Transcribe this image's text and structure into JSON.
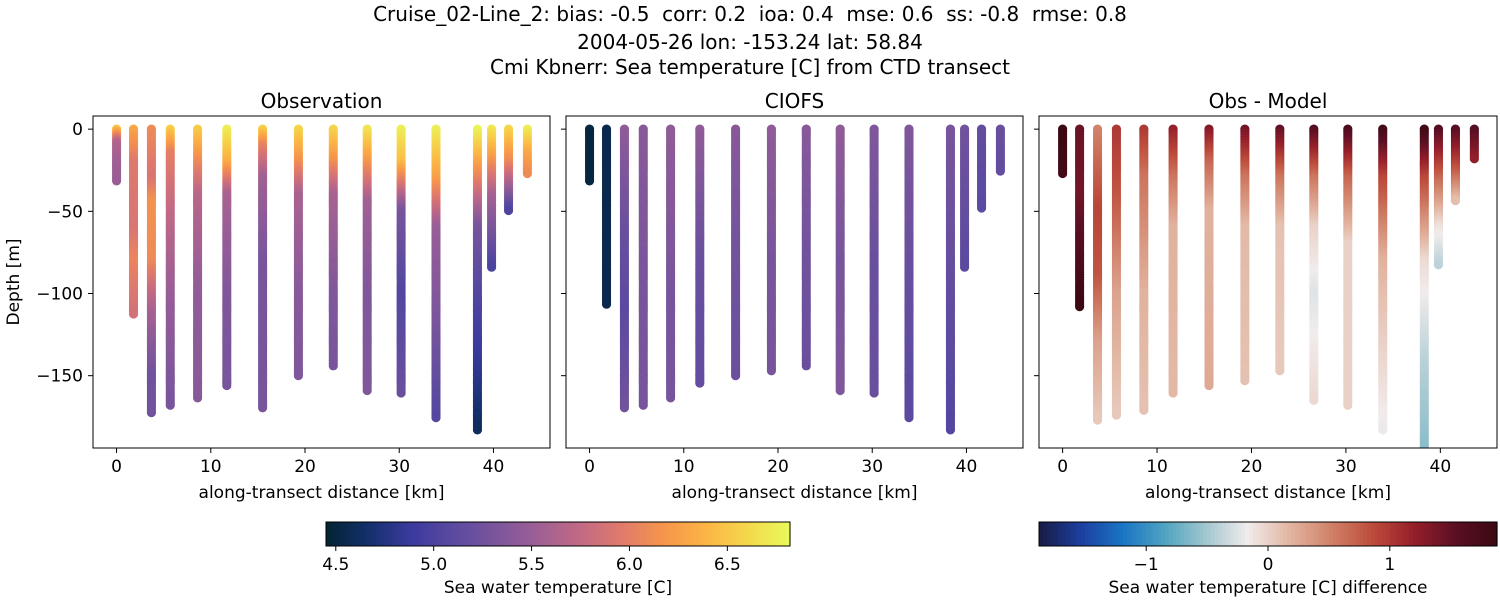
{
  "figure": {
    "title_lines": [
      "Cruise_02-Line_2: bias: -0.5  corr: 0.2  ioa: 0.4  mse: 0.6  ss: -0.8  rmse: 0.8",
      "2004-05-26 lon: -153.24 lat: 58.84",
      "Cmi Kbnerr: Sea temperature [C] from CTD transect"
    ]
  },
  "chart_data": [
    {
      "type": "scatter",
      "panel": "observation",
      "title": "Observation",
      "xlabel": "along-transect distance [km]",
      "ylabel": "Depth [m]",
      "xlim": [
        -2.5,
        46
      ],
      "ylim": [
        -194,
        8
      ],
      "xticks": [
        0,
        10,
        20,
        30,
        40
      ],
      "yticks": [
        0,
        -50,
        -100,
        -150
      ],
      "colormap": "thermal",
      "clim": [
        4.45,
        6.82
      ],
      "casts": [
        {
          "x": 0.0,
          "max_depth": 32,
          "temps": [
            [
              0,
              6.45
            ],
            [
              8,
              5.65
            ],
            [
              20,
              5.55
            ],
            [
              32,
              5.5
            ]
          ]
        },
        {
          "x": 1.8,
          "max_depth": 113,
          "temps": [
            [
              0,
              6.3
            ],
            [
              20,
              5.95
            ],
            [
              60,
              5.9
            ],
            [
              80,
              6.05
            ],
            [
              113,
              5.85
            ]
          ]
        },
        {
          "x": 3.7,
          "max_depth": 173,
          "temps": [
            [
              0,
              6.1
            ],
            [
              30,
              5.9
            ],
            [
              45,
              6.15
            ],
            [
              80,
              6.1
            ],
            [
              110,
              5.6
            ],
            [
              150,
              5.25
            ],
            [
              173,
              5.25
            ]
          ]
        },
        {
          "x": 5.7,
          "max_depth": 168,
          "temps": [
            [
              0,
              6.55
            ],
            [
              15,
              6.0
            ],
            [
              50,
              5.75
            ],
            [
              100,
              5.5
            ],
            [
              168,
              5.3
            ]
          ]
        },
        {
          "x": 8.6,
          "max_depth": 164,
          "temps": [
            [
              0,
              6.55
            ],
            [
              15,
              6.2
            ],
            [
              40,
              5.7
            ],
            [
              100,
              5.45
            ],
            [
              164,
              5.4
            ]
          ]
        },
        {
          "x": 11.7,
          "max_depth": 156,
          "temps": [
            [
              0,
              6.75
            ],
            [
              20,
              6.35
            ],
            [
              40,
              5.6
            ],
            [
              100,
              5.35
            ],
            [
              156,
              5.3
            ]
          ]
        },
        {
          "x": 15.5,
          "max_depth": 170,
          "temps": [
            [
              0,
              6.55
            ],
            [
              10,
              6.05
            ],
            [
              30,
              5.55
            ],
            [
              80,
              5.3
            ],
            [
              170,
              5.3
            ]
          ]
        },
        {
          "x": 19.3,
          "max_depth": 150,
          "temps": [
            [
              0,
              6.6
            ],
            [
              20,
              6.15
            ],
            [
              40,
              5.6
            ],
            [
              100,
              5.4
            ],
            [
              150,
              5.35
            ]
          ]
        },
        {
          "x": 23.0,
          "max_depth": 145,
          "temps": [
            [
              0,
              6.6
            ],
            [
              20,
              6.15
            ],
            [
              40,
              5.6
            ],
            [
              100,
              5.35
            ],
            [
              145,
              5.3
            ]
          ]
        },
        {
          "x": 26.6,
          "max_depth": 159,
          "temps": [
            [
              0,
              6.7
            ],
            [
              20,
              6.2
            ],
            [
              45,
              5.55
            ],
            [
              100,
              5.35
            ],
            [
              159,
              5.35
            ]
          ]
        },
        {
          "x": 30.2,
          "max_depth": 161,
          "temps": [
            [
              0,
              6.75
            ],
            [
              20,
              6.45
            ],
            [
              50,
              5.3
            ],
            [
              100,
              5.05
            ],
            [
              161,
              5.2
            ]
          ]
        },
        {
          "x": 33.9,
          "max_depth": 176,
          "temps": [
            [
              0,
              6.75
            ],
            [
              30,
              6.25
            ],
            [
              60,
              5.5
            ],
            [
              120,
              5.3
            ],
            [
              176,
              5.05
            ]
          ]
        },
        {
          "x": 38.3,
          "max_depth": 184,
          "temps": [
            [
              0,
              6.8
            ],
            [
              20,
              6.3
            ],
            [
              60,
              5.3
            ],
            [
              100,
              5.05
            ],
            [
              150,
              4.8
            ],
            [
              184,
              4.6
            ]
          ]
        },
        {
          "x": 39.8,
          "max_depth": 84,
          "temps": [
            [
              0,
              6.7
            ],
            [
              15,
              6.3
            ],
            [
              40,
              5.6
            ],
            [
              84,
              5.0
            ]
          ]
        },
        {
          "x": 41.6,
          "max_depth": 50,
          "temps": [
            [
              0,
              6.6
            ],
            [
              20,
              6.1
            ],
            [
              50,
              5.0
            ]
          ]
        },
        {
          "x": 43.6,
          "max_depth": 27,
          "temps": [
            [
              0,
              6.75
            ],
            [
              15,
              6.3
            ],
            [
              27,
              6.1
            ]
          ]
        }
      ]
    },
    {
      "type": "scatter",
      "panel": "model",
      "title": "CIOFS",
      "xlabel": "along-transect distance [km]",
      "xlim": [
        -2.5,
        46
      ],
      "ylim": [
        -194,
        8
      ],
      "xticks": [
        0,
        10,
        20,
        30,
        40
      ],
      "colormap": "thermal",
      "clim": [
        4.45,
        6.82
      ],
      "casts": [
        {
          "x": 0.0,
          "max_depth": 32,
          "temps": [
            [
              0,
              4.5
            ],
            [
              32,
              4.5
            ]
          ]
        },
        {
          "x": 1.8,
          "max_depth": 107,
          "temps": [
            [
              0,
              4.55
            ],
            [
              107,
              4.55
            ]
          ]
        },
        {
          "x": 3.7,
          "max_depth": 170,
          "temps": [
            [
              0,
              5.45
            ],
            [
              60,
              5.2
            ],
            [
              110,
              5.1
            ],
            [
              170,
              5.25
            ]
          ]
        },
        {
          "x": 5.7,
          "max_depth": 168,
          "temps": [
            [
              0,
              5.4
            ],
            [
              100,
              5.3
            ],
            [
              168,
              5.3
            ]
          ]
        },
        {
          "x": 8.6,
          "max_depth": 164,
          "temps": [
            [
              0,
              5.45
            ],
            [
              100,
              5.3
            ],
            [
              164,
              5.3
            ]
          ]
        },
        {
          "x": 11.7,
          "max_depth": 155,
          "temps": [
            [
              0,
              5.45
            ],
            [
              80,
              5.2
            ],
            [
              155,
              5.15
            ]
          ]
        },
        {
          "x": 15.5,
          "max_depth": 151,
          "temps": [
            [
              0,
              5.4
            ],
            [
              80,
              5.25
            ],
            [
              151,
              5.2
            ]
          ]
        },
        {
          "x": 19.3,
          "max_depth": 148,
          "temps": [
            [
              0,
              5.45
            ],
            [
              80,
              5.3
            ],
            [
              148,
              5.3
            ]
          ]
        },
        {
          "x": 23.0,
          "max_depth": 145,
          "temps": [
            [
              0,
              5.4
            ],
            [
              80,
              5.25
            ],
            [
              145,
              5.2
            ]
          ]
        },
        {
          "x": 26.6,
          "max_depth": 159,
          "temps": [
            [
              0,
              5.45
            ],
            [
              80,
              5.3
            ],
            [
              159,
              5.35
            ]
          ]
        },
        {
          "x": 30.2,
          "max_depth": 161,
          "temps": [
            [
              0,
              5.35
            ],
            [
              80,
              5.2
            ],
            [
              161,
              5.2
            ]
          ]
        },
        {
          "x": 33.9,
          "max_depth": 176,
          "temps": [
            [
              0,
              5.35
            ],
            [
              80,
              5.2
            ],
            [
              176,
              5.1
            ]
          ]
        },
        {
          "x": 38.3,
          "max_depth": 184,
          "temps": [
            [
              0,
              5.3
            ],
            [
              100,
              5.15
            ],
            [
              184,
              5.05
            ]
          ]
        },
        {
          "x": 39.8,
          "max_depth": 84,
          "temps": [
            [
              0,
              5.25
            ],
            [
              84,
              5.1
            ]
          ]
        },
        {
          "x": 41.6,
          "max_depth": 49,
          "temps": [
            [
              0,
              5.15
            ],
            [
              49,
              5.1
            ]
          ]
        },
        {
          "x": 43.6,
          "max_depth": 26,
          "temps": [
            [
              0,
              5.2
            ],
            [
              26,
              5.15
            ]
          ]
        }
      ]
    },
    {
      "type": "scatter",
      "panel": "difference",
      "title": "Obs - Model",
      "xlabel": "along-transect distance [km]",
      "xlim": [
        -2.5,
        46
      ],
      "ylim": [
        -194,
        8
      ],
      "xticks": [
        0,
        10,
        20,
        30,
        40
      ],
      "colormap": "balance",
      "clim": [
        -1.88,
        1.88
      ],
      "casts": [
        {
          "x": 0.0,
          "max_depth": 27,
          "diffs": [
            [
              0,
              1.9
            ],
            [
              27,
              1.8
            ]
          ]
        },
        {
          "x": 1.8,
          "max_depth": 109,
          "diffs": [
            [
              0,
              1.45
            ],
            [
              40,
              1.4
            ],
            [
              70,
              1.6
            ],
            [
              109,
              1.9
            ]
          ]
        },
        {
          "x": 3.7,
          "max_depth": 178,
          "diffs": [
            [
              0,
              0.5
            ],
            [
              50,
              0.9
            ],
            [
              90,
              0.8
            ],
            [
              130,
              0.3
            ],
            [
              178,
              0.05
            ]
          ]
        },
        {
          "x": 5.7,
          "max_depth": 174,
          "diffs": [
            [
              0,
              1.0
            ],
            [
              40,
              0.8
            ],
            [
              100,
              0.3
            ],
            [
              174,
              0.05
            ]
          ]
        },
        {
          "x": 8.6,
          "max_depth": 171,
          "diffs": [
            [
              0,
              1.0
            ],
            [
              30,
              0.6
            ],
            [
              100,
              0.2
            ],
            [
              171,
              0.1
            ]
          ]
        },
        {
          "x": 11.7,
          "max_depth": 161,
          "diffs": [
            [
              0,
              1.2
            ],
            [
              30,
              0.6
            ],
            [
              60,
              0.2
            ],
            [
              161,
              0.15
            ]
          ]
        },
        {
          "x": 15.5,
          "max_depth": 157,
          "diffs": [
            [
              0,
              1.3
            ],
            [
              20,
              0.7
            ],
            [
              50,
              0.2
            ],
            [
              157,
              0.25
            ]
          ]
        },
        {
          "x": 19.3,
          "max_depth": 153,
          "diffs": [
            [
              0,
              1.4
            ],
            [
              30,
              0.6
            ],
            [
              60,
              0.15
            ],
            [
              153,
              0.1
            ]
          ]
        },
        {
          "x": 23.0,
          "max_depth": 147,
          "diffs": [
            [
              0,
              1.5
            ],
            [
              30,
              0.6
            ],
            [
              60,
              0.1
            ],
            [
              147,
              0.05
            ]
          ]
        },
        {
          "x": 26.6,
          "max_depth": 165,
          "diffs": [
            [
              0,
              1.6
            ],
            [
              30,
              0.6
            ],
            [
              60,
              0.0
            ],
            [
              100,
              -0.25
            ],
            [
              165,
              -0.05
            ]
          ]
        },
        {
          "x": 30.2,
          "max_depth": 168,
          "diffs": [
            [
              0,
              1.7
            ],
            [
              30,
              0.7
            ],
            [
              70,
              0.0
            ],
            [
              168,
              0.0
            ]
          ]
        },
        {
          "x": 33.9,
          "max_depth": 184,
          "diffs": [
            [
              0,
              1.8
            ],
            [
              30,
              0.9
            ],
            [
              80,
              0.2
            ],
            [
              184,
              -0.2
            ]
          ]
        },
        {
          "x": 38.3,
          "max_depth": 194,
          "diffs": [
            [
              0,
              1.85
            ],
            [
              30,
              0.9
            ],
            [
              80,
              -0.05
            ],
            [
              140,
              -0.4
            ],
            [
              194,
              -0.6
            ]
          ]
        },
        {
          "x": 39.8,
          "max_depth": 83,
          "diffs": [
            [
              0,
              1.6
            ],
            [
              30,
              0.7
            ],
            [
              60,
              -0.1
            ],
            [
              83,
              -0.4
            ]
          ]
        },
        {
          "x": 41.6,
          "max_depth": 44,
          "diffs": [
            [
              0,
              1.6
            ],
            [
              25,
              0.8
            ],
            [
              44,
              0.1
            ]
          ]
        },
        {
          "x": 43.6,
          "max_depth": 19,
          "diffs": [
            [
              0,
              1.6
            ],
            [
              19,
              1.2
            ]
          ]
        }
      ]
    },
    {
      "type": "colorbar",
      "label": "Sea water temperature [C]",
      "colormap": "thermal",
      "range": [
        4.45,
        6.82
      ],
      "ticks": [
        "4.5",
        "5.0",
        "5.5",
        "6.0",
        "6.5"
      ]
    },
    {
      "type": "colorbar",
      "label": "Sea water temperature [C] difference",
      "colormap": "balance",
      "range": [
        -1.88,
        1.88
      ],
      "ticks": [
        "−1",
        "0",
        "1"
      ]
    }
  ]
}
